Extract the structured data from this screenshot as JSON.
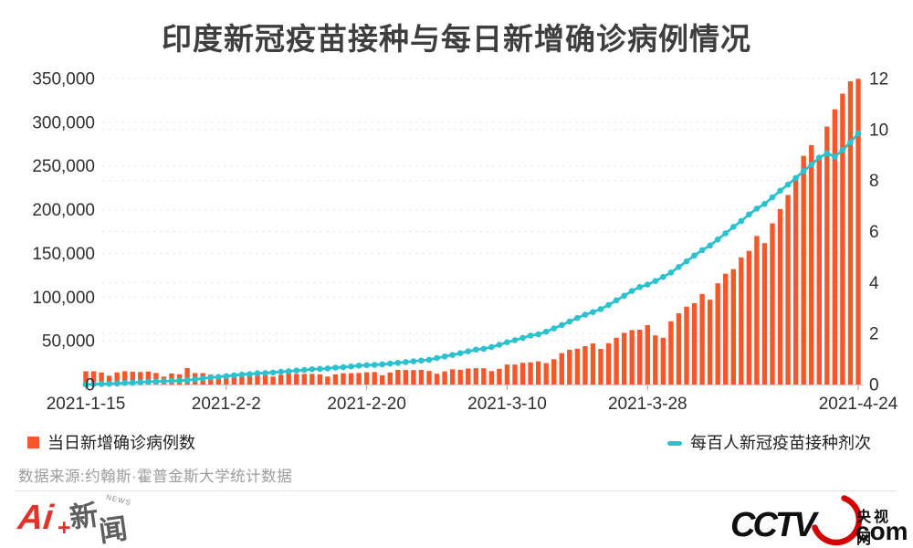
{
  "title": "印度新冠疫苗接种与每日新增确诊病例情况",
  "colors": {
    "bar": "#F4572A",
    "line": "#2BC1CF",
    "grid": "#E9E9E9",
    "axis_text": "#2e2e2e",
    "baseline": "#cccccc",
    "tick": "#999999",
    "cctv_red": "#D50000",
    "ai_red": "#E0342A"
  },
  "chart_data": {
    "type": "bar+line combo (bar=daily new confirmed cases, left axis; line=vaccine doses per 100 people, right axis)",
    "start_date": "2021-1-15",
    "end_date": "2021-4-24",
    "grid": "horizontal dashed, both axes tick sets",
    "legend_position": "below chart, left and right",
    "x_ticks": {
      "labels": [
        "2021-1-15",
        "2021-2-2",
        "2021-2-20",
        "2021-3-10",
        "2021-3-28",
        "2021-4-24"
      ],
      "day_index": [
        0,
        18,
        36,
        54,
        72,
        99
      ]
    },
    "left_axis": {
      "max": 350000,
      "min": 0,
      "step": 50000,
      "labels": [
        "0",
        "50,000",
        "100,000",
        "150,000",
        "200,000",
        "250,000",
        "300,000",
        "350,000"
      ]
    },
    "right_axis": {
      "max": 12,
      "min": 0,
      "step": 2,
      "labels": [
        "0",
        "2",
        "4",
        "6",
        "8",
        "10",
        "12"
      ]
    },
    "series": [
      {
        "name": "当日新增确诊病例数",
        "type": "bar",
        "axis": "left",
        "values": [
          15158,
          15144,
          13788,
          10064,
          13823,
          15223,
          14545,
          14256,
          14849,
          13203,
          9102,
          12689,
          11666,
          18855,
          13083,
          13052,
          11427,
          8635,
          11039,
          12899,
          12408,
          12059,
          12143,
          11831,
          9110,
          11067,
          12923,
          12095,
          12143,
          12188,
          11649,
          9121,
          11610,
          12881,
          12923,
          13193,
          13993,
          14264,
          10584,
          13742,
          16738,
          16577,
          16488,
          16752,
          15510,
          12286,
          14989,
          17407,
          16838,
          18327,
          18711,
          18599,
          15388,
          17921,
          22854,
          22861,
          24882,
          25320,
          26514,
          24437,
          28903,
          35871,
          39726,
          40953,
          43846,
          46951,
          40715,
          47262,
          53476,
          59118,
          62258,
          62714,
          68020,
          56211,
          53480,
          72330,
          81466,
          89129,
          92998,
          103558,
          96982,
          115736,
          126789,
          131968,
          145384,
          152879,
          169914,
          161736,
          184372,
          200739,
          216850,
          234692,
          261500,
          273810,
          259170,
          295041,
          314835,
          332730,
          346786,
          349691
        ]
      },
      {
        "name": "每百人新冠疫苗接种剂次",
        "type": "line",
        "axis": "right",
        "values": [
          0.0,
          0.01,
          0.02,
          0.03,
          0.04,
          0.06,
          0.07,
          0.09,
          0.11,
          0.12,
          0.13,
          0.14,
          0.15,
          0.17,
          0.2,
          0.24,
          0.27,
          0.3,
          0.33,
          0.36,
          0.39,
          0.41,
          0.44,
          0.45,
          0.47,
          0.5,
          0.52,
          0.55,
          0.57,
          0.6,
          0.61,
          0.63,
          0.66,
          0.68,
          0.71,
          0.74,
          0.76,
          0.77,
          0.79,
          0.82,
          0.85,
          0.88,
          0.91,
          0.94,
          0.97,
          1.04,
          1.1,
          1.16,
          1.23,
          1.3,
          1.37,
          1.4,
          1.47,
          1.56,
          1.66,
          1.74,
          1.83,
          1.92,
          1.97,
          2.07,
          2.2,
          2.33,
          2.47,
          2.61,
          2.74,
          2.84,
          2.96,
          3.12,
          3.3,
          3.48,
          3.67,
          3.82,
          3.92,
          4.06,
          4.22,
          4.39,
          4.61,
          4.83,
          5.06,
          5.27,
          5.45,
          5.69,
          5.93,
          6.18,
          6.41,
          6.67,
          6.9,
          7.08,
          7.34,
          7.6,
          7.84,
          8.1,
          8.37,
          8.62,
          8.9,
          9.07,
          8.93,
          9.2,
          9.5,
          9.85
        ]
      }
    ]
  },
  "legend": {
    "bar_label": "当日新增确诊病例数",
    "line_label": "每百人新冠疫苗接种剂次"
  },
  "source_note": "数据来源:约翰斯·霍普金斯大学统计数据",
  "branding": {
    "ai_news": {
      "ai": "Ai",
      "plus": "+",
      "xin": "新",
      "wen": "闻",
      "news": "NEWS"
    },
    "cctv": {
      "wordmark": "CCTV",
      "site": "央视网",
      "tld": "com"
    }
  }
}
